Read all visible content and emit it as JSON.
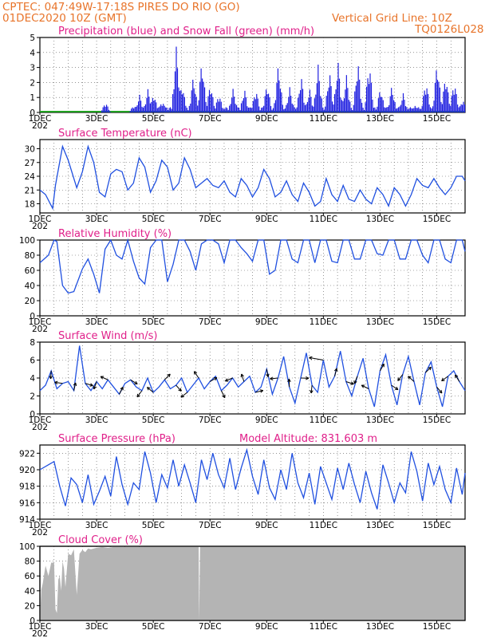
{
  "header": {
    "line1": "CPTEC:   047:49W-17:18S   PIRES DO RIO (GO)",
    "date": "01DEC2020 10Z (GMT)",
    "grid_note": "Vertical Grid Line: 10Z",
    "run_code": "TQ0126L028"
  },
  "x_ticks": [
    "1DEC",
    "3DEC",
    "5DEC",
    "7DEC",
    "9DEC",
    "11DEC",
    "13DEC",
    "15DEC"
  ],
  "x_year_fragment": "202",
  "chart_data": [
    {
      "type": "bar",
      "title": "Precipitation (blue) and Snow Fall (green) (mm/h)",
      "ylim": [
        0,
        5
      ],
      "yticks": [
        0,
        1,
        2,
        3,
        4,
        5
      ],
      "x_range_days": [
        1,
        16
      ],
      "series": [
        {
          "name": "Precipitation",
          "color": "#2020e0",
          "points": [
            [
              3.3,
              0.7
            ],
            [
              4.3,
              0.5
            ],
            [
              4.5,
              1.2
            ],
            [
              4.8,
              1.6
            ],
            [
              5.0,
              1.3
            ],
            [
              5.3,
              0.8
            ],
            [
              5.8,
              4.5
            ],
            [
              6.0,
              2.0
            ],
            [
              6.4,
              2.5
            ],
            [
              6.7,
              3.6
            ],
            [
              7.0,
              2.0
            ],
            [
              7.3,
              1.3
            ],
            [
              7.8,
              1.6
            ],
            [
              8.2,
              1.6
            ],
            [
              8.6,
              1.6
            ],
            [
              9.0,
              2.0
            ],
            [
              9.4,
              3.3
            ],
            [
              9.8,
              1.7
            ],
            [
              10.2,
              2.5
            ],
            [
              10.5,
              1.6
            ],
            [
              10.8,
              3.2
            ],
            [
              11.2,
              2.8
            ],
            [
              11.5,
              3.5
            ],
            [
              11.8,
              2.5
            ],
            [
              12.2,
              3.5
            ],
            [
              12.6,
              3.5
            ],
            [
              13.0,
              1.7
            ],
            [
              13.4,
              1.8
            ],
            [
              13.8,
              1.3
            ],
            [
              14.2,
              0.5
            ],
            [
              14.6,
              2.2
            ],
            [
              15.0,
              3.5
            ],
            [
              15.3,
              2.6
            ],
            [
              15.6,
              2.2
            ],
            [
              15.9,
              0.9
            ]
          ]
        },
        {
          "name": "Snow Fall",
          "color": "#20a020",
          "values": "0 throughout"
        }
      ]
    },
    {
      "type": "line",
      "title": "Surface Temperature (nC)",
      "ylim": [
        16,
        32
      ],
      "yticks": [
        18,
        21,
        24,
        27,
        30
      ],
      "color": "#2050e0",
      "x": [
        1.0,
        1.2,
        1.45,
        1.55,
        1.8,
        2.0,
        2.3,
        2.5,
        2.7,
        2.9,
        3.1,
        3.3,
        3.5,
        3.7,
        3.9,
        4.1,
        4.3,
        4.5,
        4.7,
        4.9,
        5.1,
        5.3,
        5.5,
        5.7,
        5.9,
        6.1,
        6.3,
        6.5,
        6.7,
        6.9,
        7.1,
        7.3,
        7.5,
        7.7,
        7.9,
        8.1,
        8.3,
        8.5,
        8.7,
        8.9,
        9.1,
        9.3,
        9.5,
        9.7,
        9.9,
        10.1,
        10.3,
        10.5,
        10.7,
        10.9,
        11.1,
        11.3,
        11.5,
        11.7,
        11.9,
        12.1,
        12.3,
        12.5,
        12.7,
        12.9,
        13.1,
        13.3,
        13.5,
        13.7,
        13.9,
        14.1,
        14.3,
        14.5,
        14.7,
        14.9,
        15.1,
        15.3,
        15.5,
        15.7,
        15.9,
        16.0
      ],
      "y": [
        21.0,
        20.0,
        17.0,
        22.0,
        30.5,
        27.5,
        21.5,
        25.0,
        30.5,
        27.0,
        20.5,
        19.5,
        24.5,
        25.5,
        25.0,
        21.0,
        22.5,
        28.0,
        26.0,
        20.5,
        23.0,
        27.5,
        26.0,
        21.0,
        22.5,
        28.0,
        25.5,
        21.5,
        22.5,
        23.5,
        22.0,
        21.5,
        23.0,
        20.5,
        19.5,
        23.5,
        22.0,
        19.5,
        21.5,
        25.5,
        23.5,
        19.5,
        20.5,
        23.0,
        20.0,
        18.5,
        22.5,
        20.5,
        17.5,
        18.5,
        23.5,
        20.0,
        18.5,
        22.0,
        19.0,
        18.5,
        21.0,
        19.0,
        18.0,
        21.5,
        20.0,
        17.5,
        21.5,
        20.0,
        17.5,
        20.0,
        23.5,
        22.0,
        21.5,
        23.5,
        21.5,
        20.0,
        21.5,
        24.0,
        24.0,
        23.0
      ]
    },
    {
      "type": "line",
      "title": "Relative Humidity (%)",
      "ylim": [
        0,
        100
      ],
      "yticks": [
        0,
        20,
        40,
        60,
        80,
        100
      ],
      "color": "#2050e0",
      "x": [
        1.0,
        1.3,
        1.5,
        1.6,
        1.8,
        2.0,
        2.2,
        2.5,
        2.7,
        2.9,
        3.1,
        3.3,
        3.5,
        3.7,
        3.9,
        4.1,
        4.3,
        4.5,
        4.7,
        4.9,
        5.1,
        5.3,
        5.5,
        5.7,
        5.9,
        6.1,
        6.3,
        6.5,
        6.7,
        6.9,
        7.1,
        7.3,
        7.5,
        7.7,
        7.9,
        8.1,
        8.3,
        8.5,
        8.7,
        8.9,
        9.1,
        9.3,
        9.5,
        9.7,
        9.9,
        10.1,
        10.3,
        10.5,
        10.7,
        10.9,
        11.1,
        11.3,
        11.5,
        11.7,
        11.9,
        12.1,
        12.3,
        12.5,
        12.7,
        12.9,
        13.1,
        13.3,
        13.5,
        13.7,
        13.9,
        14.1,
        14.3,
        14.5,
        14.7,
        14.9,
        15.1,
        15.3,
        15.5,
        15.7,
        15.9,
        16.0
      ],
      "y": [
        70,
        80,
        100,
        98,
        40,
        30,
        32,
        62,
        75,
        55,
        30,
        88,
        100,
        80,
        75,
        100,
        72,
        50,
        42,
        90,
        100,
        100,
        45,
        68,
        100,
        100,
        85,
        60,
        95,
        100,
        100,
        95,
        70,
        100,
        100,
        90,
        82,
        72,
        100,
        100,
        55,
        60,
        100,
        100,
        75,
        70,
        100,
        100,
        70,
        100,
        100,
        72,
        70,
        100,
        100,
        75,
        75,
        100,
        100,
        82,
        80,
        100,
        100,
        75,
        75,
        100,
        100,
        80,
        70,
        100,
        100,
        75,
        70,
        100,
        100,
        85
      ]
    },
    {
      "type": "line",
      "title": "Surface Wind (m/s)",
      "ylim": [
        0,
        8
      ],
      "yticks": [
        0,
        2,
        4,
        6,
        8
      ],
      "color": "#2050e0",
      "x": [
        1.0,
        1.2,
        1.4,
        1.6,
        1.8,
        2.0,
        2.2,
        2.4,
        2.6,
        2.8,
        3.0,
        3.2,
        3.4,
        3.6,
        3.8,
        4.0,
        4.2,
        4.4,
        4.6,
        4.8,
        5.0,
        5.2,
        5.4,
        5.6,
        5.8,
        6.0,
        6.2,
        6.4,
        6.6,
        6.8,
        7.0,
        7.2,
        7.4,
        7.6,
        7.8,
        8.0,
        8.2,
        8.4,
        8.6,
        8.8,
        9.0,
        9.2,
        9.4,
        9.6,
        9.8,
        10.0,
        10.2,
        10.4,
        10.6,
        10.8,
        11.0,
        11.2,
        11.4,
        11.6,
        11.8,
        12.0,
        12.2,
        12.4,
        12.6,
        12.8,
        13.0,
        13.2,
        13.4,
        13.6,
        13.8,
        14.0,
        14.2,
        14.4,
        14.6,
        14.8,
        15.0,
        15.2,
        15.4,
        15.6,
        15.8,
        16.0
      ],
      "y": [
        2.6,
        3.2,
        4.8,
        2.8,
        3.4,
        3.6,
        2.6,
        7.6,
        3.4,
        2.6,
        3.6,
        2.8,
        3.8,
        3.0,
        2.2,
        3.4,
        3.8,
        3.0,
        2.6,
        4.0,
        2.4,
        3.0,
        3.8,
        2.8,
        3.2,
        4.0,
        2.4,
        3.2,
        4.0,
        2.8,
        3.6,
        4.2,
        2.6,
        3.2,
        4.0,
        3.0,
        3.6,
        4.2,
        2.4,
        3.0,
        5.0,
        2.2,
        4.0,
        6.4,
        3.0,
        1.2,
        4.0,
        6.8,
        3.2,
        2.4,
        6.0,
        3.0,
        4.2,
        7.0,
        3.6,
        2.0,
        4.2,
        6.2,
        2.8,
        0.8,
        4.8,
        6.6,
        3.2,
        1.0,
        4.4,
        6.4,
        3.6,
        1.0,
        4.6,
        5.8,
        3.0,
        0.8,
        4.2,
        4.8,
        3.6,
        2.6
      ],
      "vectors_note": "direction arrows drawn along the wind line"
    },
    {
      "type": "line",
      "title": "Surface Pressure (hPa)",
      "subtitle": "Model Altitude: 831.603 m",
      "ylim": [
        914,
        923
      ],
      "yticks": [
        914,
        916,
        918,
        920,
        922
      ],
      "color": "#2050e0",
      "x": [
        1.0,
        1.3,
        1.5,
        1.7,
        1.9,
        2.1,
        2.3,
        2.5,
        2.7,
        2.9,
        3.1,
        3.3,
        3.5,
        3.7,
        3.9,
        4.1,
        4.3,
        4.5,
        4.7,
        4.9,
        5.1,
        5.3,
        5.5,
        5.7,
        5.9,
        6.1,
        6.3,
        6.5,
        6.7,
        6.9,
        7.1,
        7.3,
        7.5,
        7.7,
        7.9,
        8.1,
        8.3,
        8.5,
        8.7,
        8.9,
        9.1,
        9.3,
        9.5,
        9.7,
        9.9,
        10.1,
        10.3,
        10.5,
        10.7,
        10.9,
        11.1,
        11.3,
        11.5,
        11.7,
        11.9,
        12.1,
        12.3,
        12.5,
        12.7,
        12.9,
        13.1,
        13.3,
        13.5,
        13.7,
        13.9,
        14.1,
        14.3,
        14.5,
        14.7,
        14.9,
        15.1,
        15.3,
        15.5,
        15.7,
        15.9,
        16.0
      ],
      "y": [
        920.0,
        920.6,
        921.0,
        918.0,
        915.6,
        919.0,
        918.2,
        916.0,
        919.4,
        915.8,
        917.4,
        919.2,
        916.8,
        921.6,
        918.2,
        915.8,
        918.4,
        917.6,
        922.2,
        919.6,
        916.0,
        919.4,
        917.8,
        921.2,
        918.0,
        920.6,
        918.4,
        916.0,
        921.2,
        918.8,
        922.0,
        919.4,
        917.8,
        921.4,
        917.6,
        920.2,
        922.4,
        919.2,
        917.0,
        921.2,
        917.8,
        916.4,
        920.0,
        917.6,
        922.0,
        918.4,
        916.6,
        919.6,
        915.8,
        920.4,
        918.4,
        916.4,
        920.2,
        917.6,
        920.8,
        918.2,
        916.0,
        919.8,
        917.2,
        915.2,
        920.6,
        918.4,
        916.0,
        918.4,
        917.2,
        922.2,
        919.8,
        916.2,
        920.8,
        918.2,
        920.4,
        917.6,
        916.0,
        920.2,
        917.0,
        919.6
      ]
    },
    {
      "type": "area",
      "title": "Cloud Cover (%)",
      "ylim": [
        0,
        100
      ],
      "yticks": [
        0,
        20,
        40,
        60,
        80,
        100
      ],
      "color": "#b4b4b4",
      "x": [
        1.0,
        1.05,
        1.1,
        1.15,
        1.2,
        1.3,
        1.4,
        1.5,
        1.55,
        1.6,
        1.65,
        1.7,
        1.75,
        1.8,
        1.85,
        1.9,
        2.0,
        2.1,
        2.2,
        2.3,
        2.4,
        2.5,
        2.6,
        2.7,
        2.8,
        3.0,
        3.2,
        3.4,
        3.6,
        4.0,
        4.5,
        5.0,
        6.0,
        6.6,
        6.62,
        6.65,
        7.0,
        8.0,
        9.0,
        10.0,
        11.0,
        12.0,
        13.0,
        14.0,
        15.0,
        16.0
      ],
      "y": [
        0,
        42,
        50,
        62,
        74,
        60,
        78,
        78,
        15,
        10,
        55,
        60,
        40,
        80,
        70,
        45,
        90,
        88,
        96,
        35,
        90,
        95,
        92,
        97,
        96,
        98,
        99,
        98,
        99,
        99,
        99,
        100,
        100,
        100,
        0,
        100,
        100,
        100,
        100,
        100,
        100,
        100,
        100,
        100,
        100,
        100
      ]
    }
  ]
}
